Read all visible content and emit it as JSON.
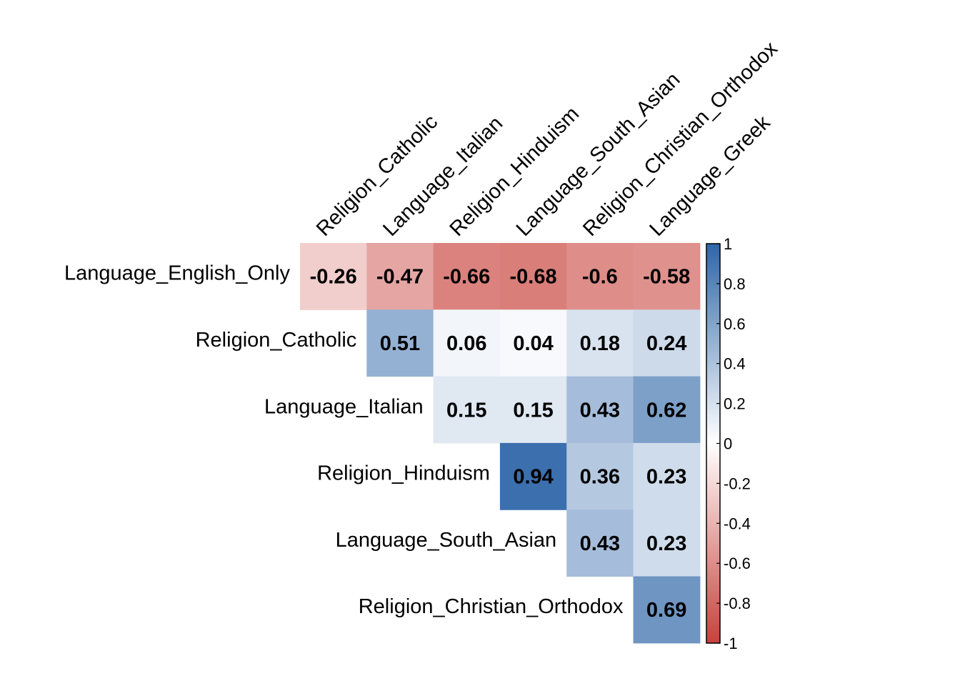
{
  "chart_data": {
    "type": "heatmap",
    "title": "",
    "row_labels": [
      "Language_English_Only",
      "Religion_Catholic",
      "Language_Italian",
      "Religion_Hinduism",
      "Language_South_Asian",
      "Religion_Christian_Orthodox"
    ],
    "col_labels": [
      "Religion_Catholic",
      "Language_Italian",
      "Religion_Hinduism",
      "Language_South_Asian",
      "Religion_Christian_Orthodox",
      "Language_Greek"
    ],
    "values": [
      [
        -0.26,
        -0.47,
        -0.66,
        -0.68,
        -0.6,
        -0.58
      ],
      [
        null,
        0.51,
        0.06,
        0.04,
        0.18,
        0.24
      ],
      [
        null,
        null,
        0.15,
        0.15,
        0.43,
        0.62
      ],
      [
        null,
        null,
        null,
        0.94,
        0.36,
        0.23
      ],
      [
        null,
        null,
        null,
        null,
        0.43,
        0.23
      ],
      [
        null,
        null,
        null,
        null,
        null,
        0.69
      ]
    ],
    "value_labels": [
      [
        "-0.26",
        "-0.47",
        "-0.66",
        "-0.68",
        "-0.6",
        "-0.58"
      ],
      [
        "",
        "0.51",
        "0.06",
        "0.04",
        "0.18",
        "0.24"
      ],
      [
        "",
        "",
        "0.15",
        "0.15",
        "0.43",
        "0.62"
      ],
      [
        "",
        "",
        "",
        "0.94",
        "0.36",
        "0.23"
      ],
      [
        "",
        "",
        "",
        "",
        "0.43",
        "0.23"
      ],
      [
        "",
        "",
        "",
        "",
        "",
        "0.69"
      ]
    ],
    "colorbar": {
      "range": [
        -1,
        1
      ],
      "ticks": [
        "1",
        "0.8",
        "0.6",
        "0.4",
        "0.2",
        "0",
        "-0.2",
        "-0.4",
        "-0.6",
        "-0.8",
        "-1"
      ],
      "tick_values": [
        1,
        0.8,
        0.6,
        0.4,
        0.2,
        0,
        -0.2,
        -0.4,
        -0.6,
        -0.8,
        -1
      ],
      "placement": "right"
    },
    "colors": {
      "negative": "#C8413B",
      "zero": "#FFFFFF",
      "positive": "#2E66A8"
    },
    "grid": false
  }
}
